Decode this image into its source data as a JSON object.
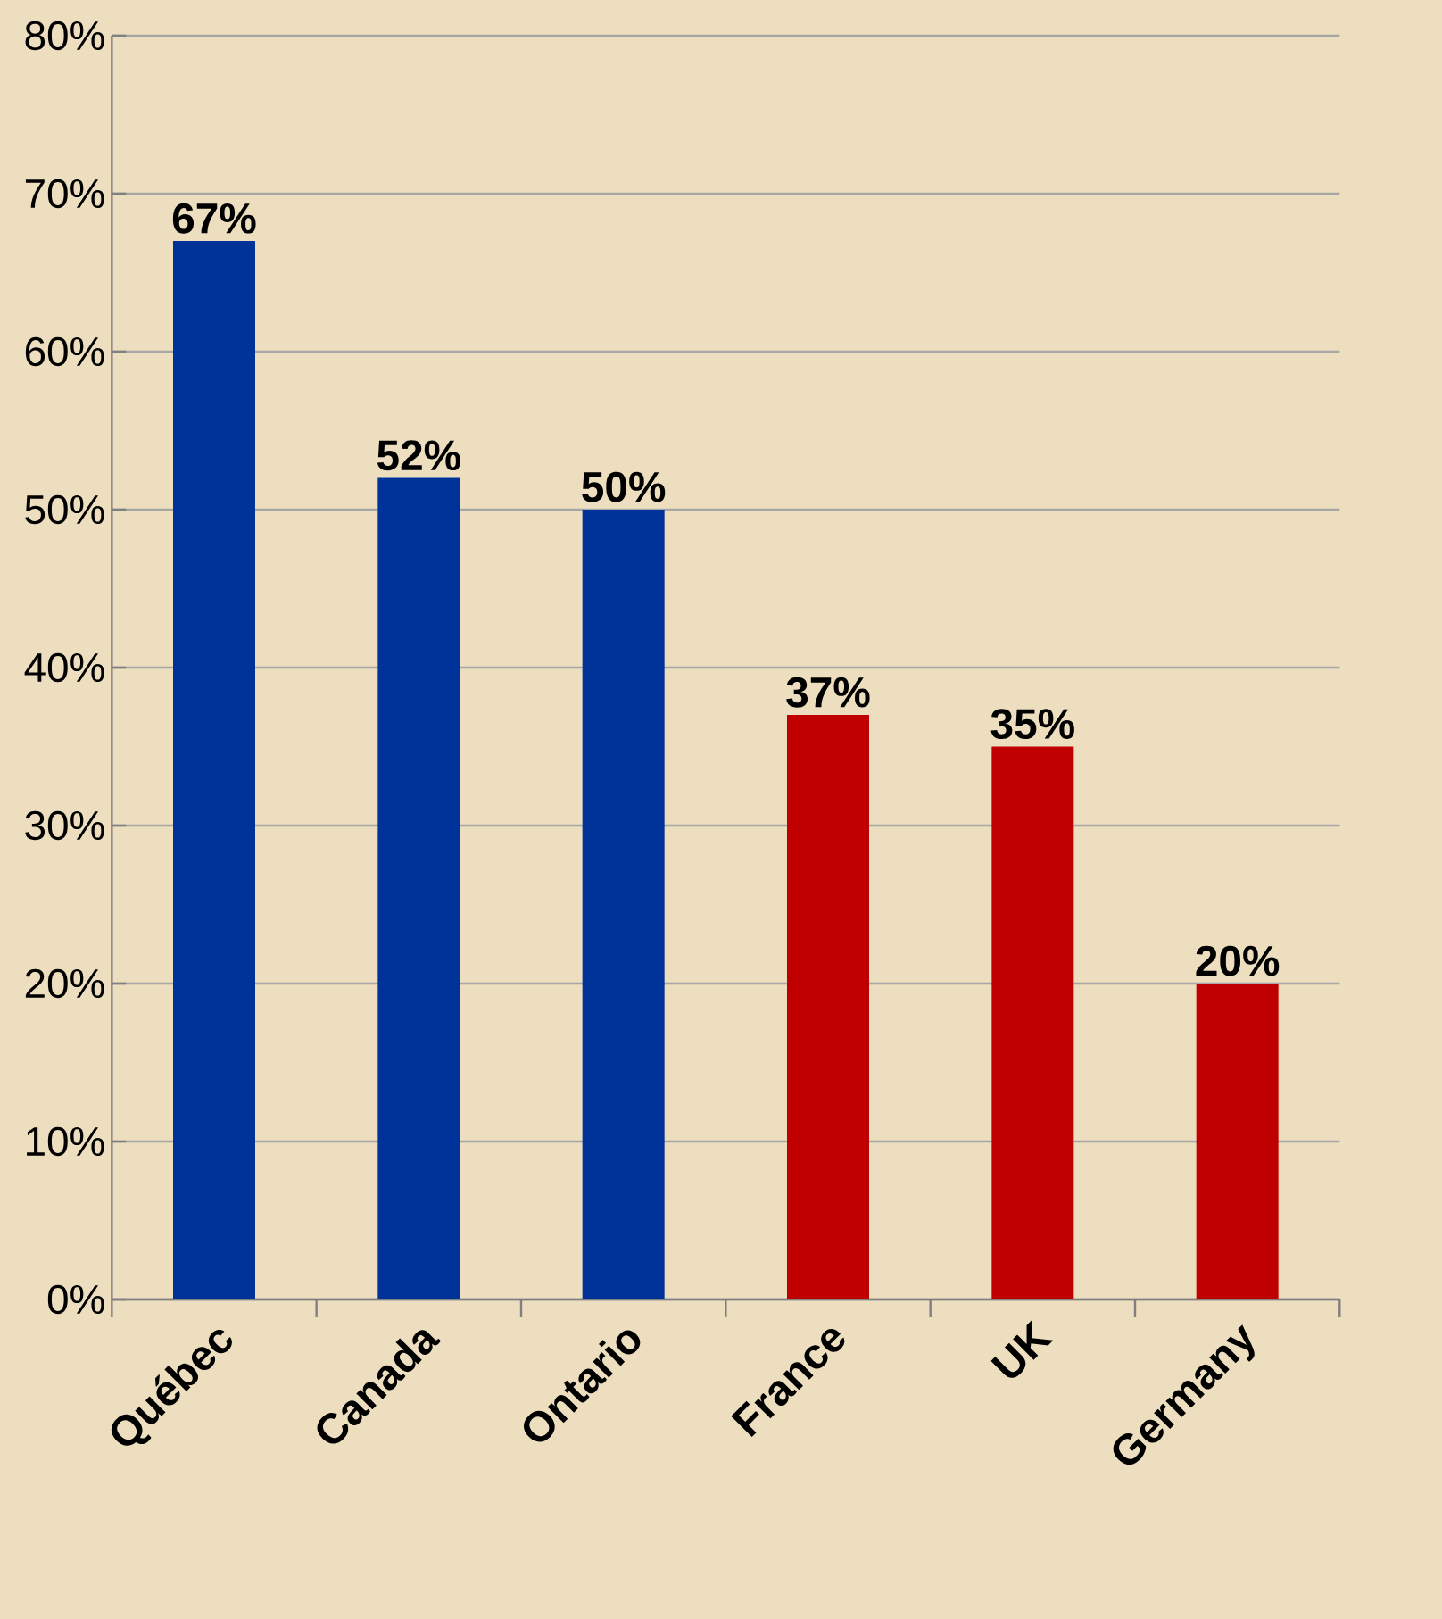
{
  "chart_data": {
    "type": "bar",
    "categories": [
      "Québec",
      "Canada",
      "Ontario",
      "France",
      "UK",
      "Germany"
    ],
    "values": [
      67,
      52,
      50,
      37,
      35,
      20
    ],
    "colors": [
      "#003399",
      "#003399",
      "#003399",
      "#c00000",
      "#c00000",
      "#c00000"
    ],
    "value_labels": [
      "67%",
      "52%",
      "50%",
      "37%",
      "35%",
      "20%"
    ],
    "ylim": [
      0,
      80
    ],
    "yticks": [
      {
        "value": 0,
        "label": "0%"
      },
      {
        "value": 10,
        "label": "10%"
      },
      {
        "value": 20,
        "label": "20%"
      },
      {
        "value": 30,
        "label": "30%"
      },
      {
        "value": 40,
        "label": "40%"
      },
      {
        "value": 50,
        "label": "50%"
      },
      {
        "value": 60,
        "label": "60%"
      },
      {
        "value": 70,
        "label": "70%"
      },
      {
        "value": 80,
        "label": "80%"
      }
    ],
    "grid": "y"
  }
}
